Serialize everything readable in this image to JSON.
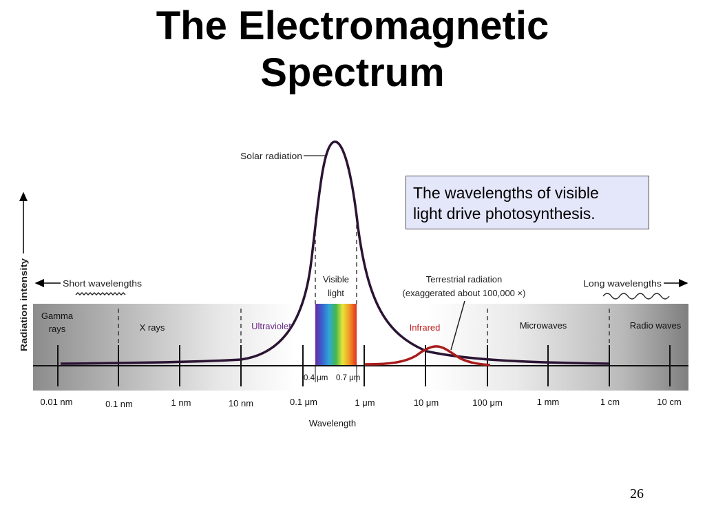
{
  "slide": {
    "title_line1": "The Electromagnetic",
    "title_line2": "Spectrum",
    "callout_line1": "The wavelengths of visible",
    "callout_line2": "light drive photosynthesis.",
    "page_number": "26"
  },
  "diagram": {
    "y_axis_label": "Radiation intensity",
    "x_axis_label": "Wavelength",
    "solar_label": "Solar radiation",
    "terrestrial_label_line1": "Terrestrial radiation",
    "terrestrial_label_line2": "(exaggerated about 100,000 ×)",
    "short_wavelengths": "Short wavelengths",
    "long_wavelengths": "Long wavelengths",
    "visible_line1": "Visible",
    "visible_line2": "light",
    "visible_bounds": [
      "0.4 μm",
      "0.7 μm"
    ],
    "regions": {
      "gamma_line1": "Gamma",
      "gamma_line2": "rays",
      "xrays": "X rays",
      "ultraviolet": "Ultraviolet",
      "infrared": "Infrared",
      "microwaves": "Microwaves",
      "radio": "Radio waves"
    },
    "tick_labels": [
      "0.01 nm",
      "0.1 nm",
      "1 nm",
      "10 nm",
      "0.1 μm",
      "1 μm",
      "10 μm",
      "100 μm",
      "1 mm",
      "1 cm",
      "10 cm"
    ],
    "colors": {
      "curve": "#2b1433",
      "terrestrial_curve": "#a81c1c",
      "ultraviolet_text": "#6a2a86",
      "infrared_text": "#c02020",
      "callout_bg": "#e4e6fa"
    }
  }
}
